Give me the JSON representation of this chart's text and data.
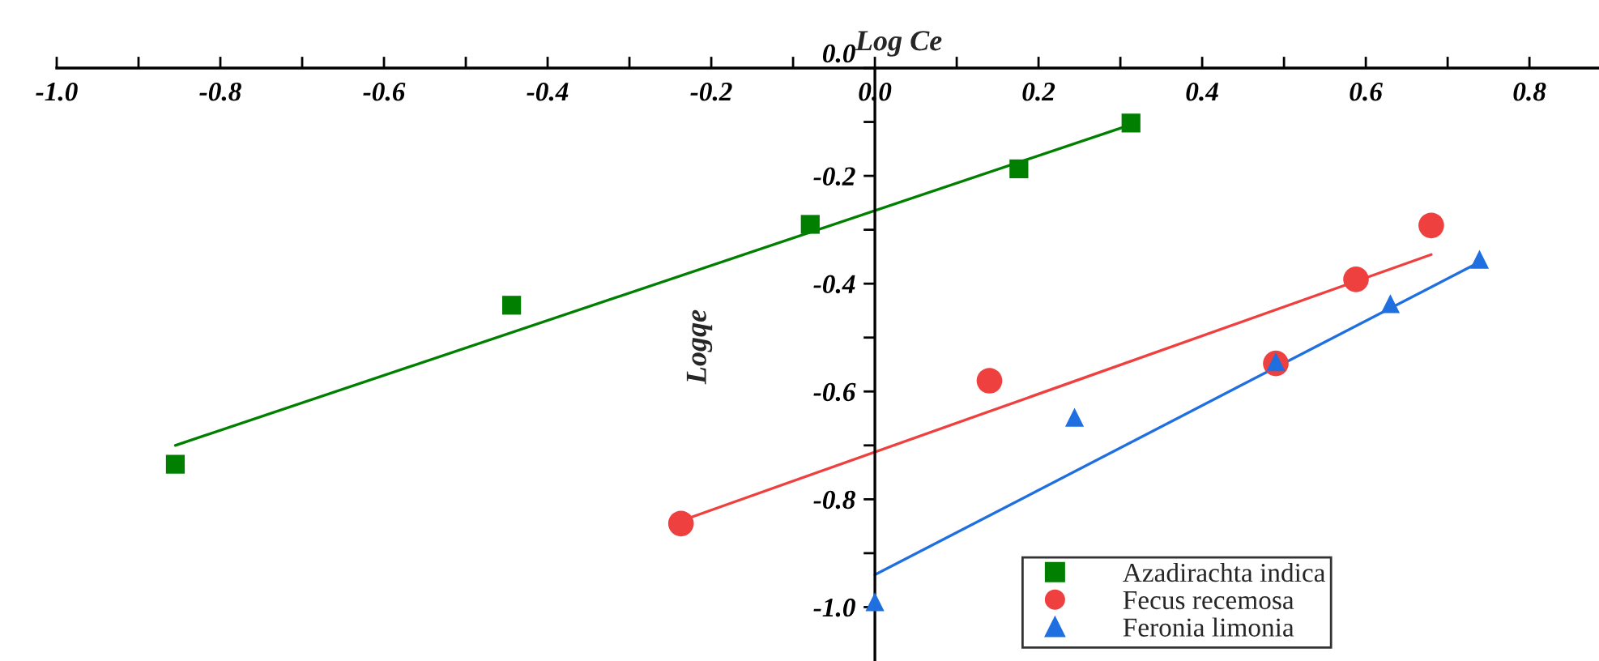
{
  "chart_data": {
    "type": "scatter",
    "xlabel": "Log Ce",
    "ylabel": "Logqe",
    "xlim": [
      -1.0,
      0.885
    ],
    "ylim": [
      -1.1,
      0.0
    ],
    "xticks": [
      {
        "value": -1.0,
        "label": "-1.0"
      },
      {
        "value": -0.9,
        "label": null
      },
      {
        "value": -0.8,
        "label": "-0.8"
      },
      {
        "value": -0.7,
        "label": null
      },
      {
        "value": -0.6,
        "label": "-0.6"
      },
      {
        "value": -0.5,
        "label": null
      },
      {
        "value": -0.4,
        "label": "-0.4"
      },
      {
        "value": -0.3,
        "label": null
      },
      {
        "value": -0.2,
        "label": "-0.2"
      },
      {
        "value": -0.1,
        "label": null
      },
      {
        "value": 0.0,
        "label": "0.0"
      },
      {
        "value": 0.1,
        "label": null
      },
      {
        "value": 0.2,
        "label": "0.2"
      },
      {
        "value": 0.3,
        "label": null
      },
      {
        "value": 0.4,
        "label": "0.4"
      },
      {
        "value": 0.5,
        "label": null
      },
      {
        "value": 0.6,
        "label": "0.6"
      },
      {
        "value": 0.7,
        "label": null
      },
      {
        "value": 0.8,
        "label": "0.8"
      }
    ],
    "yticks": [
      {
        "value": -1.0,
        "label": "-1.0"
      },
      {
        "value": -0.9,
        "label": null
      },
      {
        "value": -0.8,
        "label": "-0.8"
      },
      {
        "value": -0.7,
        "label": null
      },
      {
        "value": -0.6,
        "label": "-0.6"
      },
      {
        "value": -0.5,
        "label": null
      },
      {
        "value": -0.4,
        "label": "-0.4"
      },
      {
        "value": -0.3,
        "label": null
      },
      {
        "value": -0.2,
        "label": "-0.2"
      },
      {
        "value": -0.1,
        "label": null
      },
      {
        "value": 0.0,
        "label": "0.0"
      }
    ],
    "grid": false,
    "legend": "bottom right",
    "series": [
      {
        "name": "Azadirachta indica",
        "color": "#007f00",
        "marker": "square",
        "x": [
          -0.855,
          -0.444,
          -0.079,
          0.176,
          0.313
        ],
        "values": [
          -0.735,
          -0.44,
          -0.29,
          -0.187,
          -0.102
        ]
      },
      {
        "name": "Fecus recemosa",
        "color": "#ef4040",
        "marker": "circle",
        "x": [
          -0.237,
          0.14,
          0.49,
          0.588,
          0.68
        ],
        "values": [
          -0.845,
          -0.58,
          -0.548,
          -0.392,
          -0.292
        ]
      },
      {
        "name": "Feronia limonia",
        "color": "#1f6fe0",
        "marker": "triangle",
        "x": [
          0.0,
          0.244,
          0.49,
          0.63,
          0.739
        ],
        "values": [
          -0.99,
          -0.648,
          -0.545,
          -0.437,
          -0.355
        ]
      },
      {
        "type": "line",
        "color": "#007f00",
        "marker": "none",
        "line_style": "solid",
        "x": [
          -0.855,
          0.313
        ],
        "values": [
          -0.7,
          -0.105
        ]
      },
      {
        "type": "line",
        "color": "#ef4040",
        "marker": "none",
        "line_style": "solid",
        "x": [
          -0.237,
          0.68
        ],
        "values": [
          -0.84,
          -0.346
        ]
      },
      {
        "type": "line",
        "color": "#1f6fe0",
        "marker": "none",
        "line_style": "solid",
        "x": [
          0.0,
          0.739
        ],
        "values": [
          -0.94,
          -0.36
        ]
      }
    ]
  }
}
